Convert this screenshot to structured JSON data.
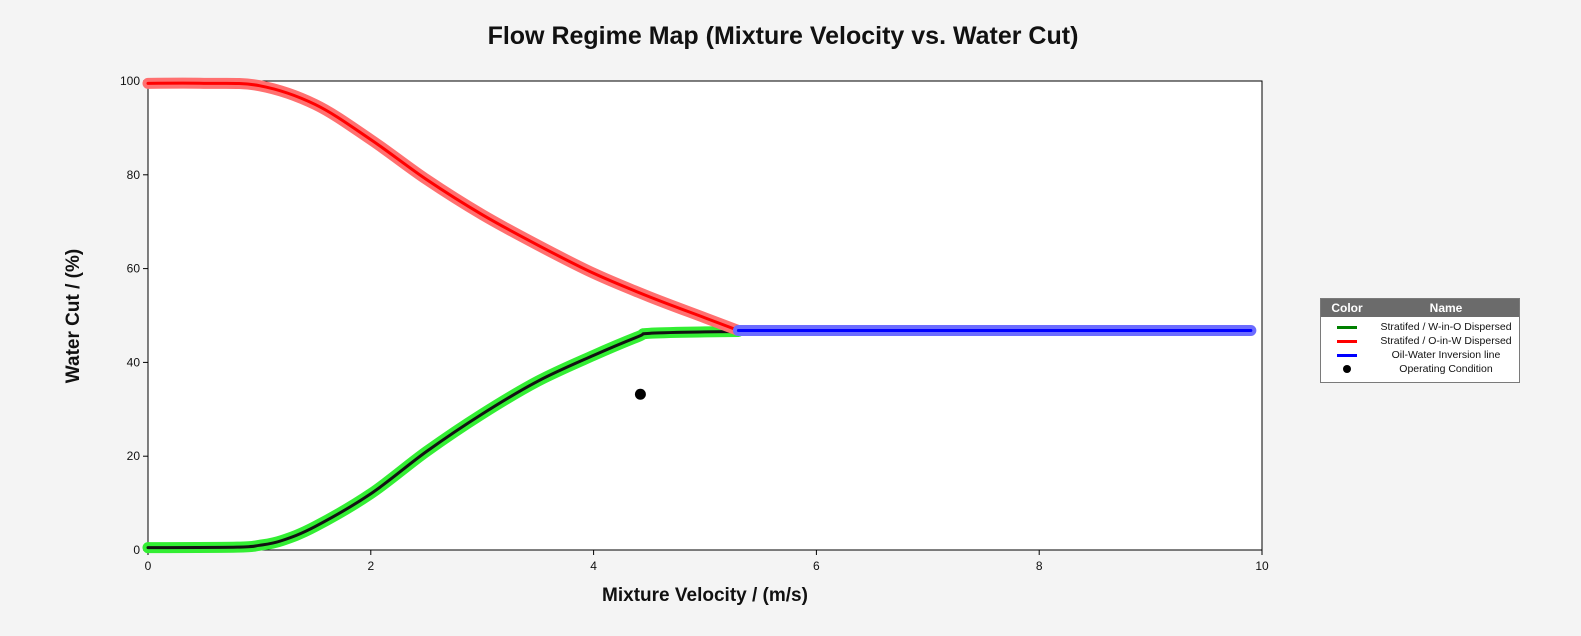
{
  "chart_data": {
    "type": "line",
    "title": "Flow Regime Map (Mixture Velocity vs. Water Cut)",
    "xlabel": "Mixture Velocity / (m/s)",
    "ylabel": "Water Cut / (%)",
    "xlim": [
      0,
      10
    ],
    "ylim": [
      0,
      100
    ],
    "xticks": [
      "0",
      "2",
      "4",
      "6",
      "8",
      "10"
    ],
    "yticks": [
      "0",
      "20",
      "40",
      "60",
      "80",
      "100"
    ],
    "grid": false,
    "legend_position": "right",
    "legend_header": {
      "color": "Color",
      "name": "Name"
    },
    "series": [
      {
        "name": "Stratifed / W-in-O Dispersed",
        "color": "#008000",
        "highlight": "#33ee33",
        "x": [
          0,
          0.8,
          1.0,
          1.2,
          1.5,
          2.0,
          2.5,
          3.0,
          3.5,
          4.0,
          4.4,
          4.5,
          5.0,
          5.3
        ],
        "y": [
          0.5,
          0.6,
          1.0,
          2.0,
          5.0,
          12.0,
          21.0,
          29.0,
          36.0,
          41.5,
          45.5,
          46.2,
          46.5,
          46.6
        ]
      },
      {
        "name": "Stratifed / O-in-W Dispersed",
        "color": "#ff0000",
        "highlight": "#ff7070",
        "x": [
          0,
          0.5,
          1.0,
          1.5,
          2.0,
          2.5,
          3.0,
          3.5,
          4.0,
          4.5,
          5.0,
          5.3
        ],
        "y": [
          99.5,
          99.5,
          99.0,
          95.0,
          87.5,
          79.0,
          71.5,
          65.0,
          59.0,
          54.0,
          49.5,
          46.8
        ]
      },
      {
        "name": "Oil-Water Inversion line",
        "color": "#0000ff",
        "highlight": "#6c6cff",
        "x": [
          5.3,
          9.9
        ],
        "y": [
          46.8,
          46.8
        ]
      }
    ],
    "points": [
      {
        "name": "Operating Condition",
        "x": 4.42,
        "y": 33.2,
        "color": "#000000"
      }
    ]
  }
}
